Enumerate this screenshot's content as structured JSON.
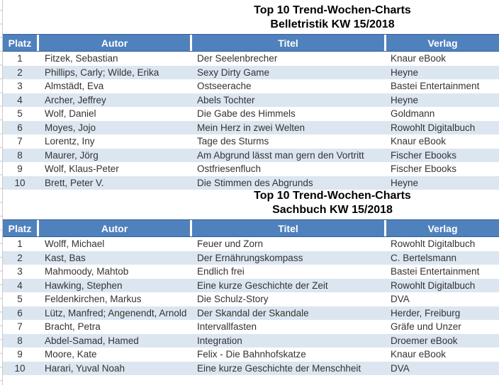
{
  "colors": {
    "header_bg": "#4F81BD",
    "band_bg": "#DCE6F1",
    "header_text": "#FFFFFF",
    "body_text": "#333333",
    "title_text": "#000000",
    "gridline": "#C9C9C9"
  },
  "tables": [
    {
      "title_line1": "Top 10 Trend-Wochen-Charts",
      "title_line2": "Belletristik KW 15/2018",
      "columns": [
        "Platz",
        "Autor",
        "Titel",
        "Verlag"
      ],
      "rows": [
        {
          "platz": "1",
          "autor": "Fitzek, Sebastian",
          "titel": "Der Seelenbrecher",
          "verlag": "Knaur eBook"
        },
        {
          "platz": "2",
          "autor": "Phillips, Carly; Wilde, Erika",
          "titel": "Sexy Dirty Game",
          "verlag": "Heyne"
        },
        {
          "platz": "3",
          "autor": "Almstädt, Eva",
          "titel": "Ostseerache",
          "verlag": "Bastei Entertainment"
        },
        {
          "platz": "4",
          "autor": "Archer, Jeffrey",
          "titel": "Abels Tochter",
          "verlag": "Heyne"
        },
        {
          "platz": "5",
          "autor": "Wolf, Daniel",
          "titel": "Die Gabe des Himmels",
          "verlag": "Goldmann"
        },
        {
          "platz": "6",
          "autor": "Moyes, Jojo",
          "titel": "Mein Herz in zwei Welten",
          "verlag": "Rowohlt Digitalbuch"
        },
        {
          "platz": "7",
          "autor": "Lorentz, Iny",
          "titel": "Tage des Sturms",
          "verlag": "Knaur eBook"
        },
        {
          "platz": "8",
          "autor": "Maurer, Jörg",
          "titel": "Am Abgrund lässt man gern den Vortritt",
          "verlag": "Fischer Ebooks"
        },
        {
          "platz": "9",
          "autor": "Wolf, Klaus-Peter",
          "titel": "Ostfriesenfluch",
          "verlag": "Fischer Ebooks"
        },
        {
          "platz": "10",
          "autor": "Brett, Peter V.",
          "titel": "Die Stimmen des Abgrunds",
          "verlag": "Heyne"
        }
      ]
    },
    {
      "title_line1": "Top 10 Trend-Wochen-Charts",
      "title_line2": "Sachbuch KW 15/2018",
      "columns": [
        "Platz",
        "Autor",
        "Titel",
        "Verlag"
      ],
      "rows": [
        {
          "platz": "1",
          "autor": "Wolff, Michael",
          "titel": "Feuer und Zorn",
          "verlag": "Rowohlt Digitalbuch"
        },
        {
          "platz": "2",
          "autor": "Kast, Bas",
          "titel": "Der Ernährungskompass",
          "verlag": "C. Bertelsmann"
        },
        {
          "platz": "3",
          "autor": "Mahmoody, Mahtob",
          "titel": "Endlich frei",
          "verlag": "Bastei Entertainment"
        },
        {
          "platz": "4",
          "autor": "Hawking, Stephen",
          "titel": "Eine kurze Geschichte der Zeit",
          "verlag": "Rowohlt Digitalbuch"
        },
        {
          "platz": "5",
          "autor": "Feldenkirchen, Markus",
          "titel": "Die Schulz-Story",
          "verlag": "DVA"
        },
        {
          "platz": "6",
          "autor": "Lütz, Manfred; Angenendt, Arnold",
          "titel": "Der Skandal der Skandale",
          "verlag": "Herder, Freiburg"
        },
        {
          "platz": "7",
          "autor": "Bracht, Petra",
          "titel": "Intervallfasten",
          "verlag": "Gräfe und Unzer"
        },
        {
          "platz": "8",
          "autor": "Abdel-Samad, Hamed",
          "titel": "Integration",
          "verlag": "Droemer eBook"
        },
        {
          "platz": "9",
          "autor": "Moore, Kate",
          "titel": "Felix - Die Bahnhofskatze",
          "verlag": "Knaur eBook"
        },
        {
          "platz": "10",
          "autor": "Harari, Yuval Noah",
          "titel": "Eine kurze Geschichte der Menschheit",
          "verlag": "DVA"
        }
      ]
    }
  ]
}
